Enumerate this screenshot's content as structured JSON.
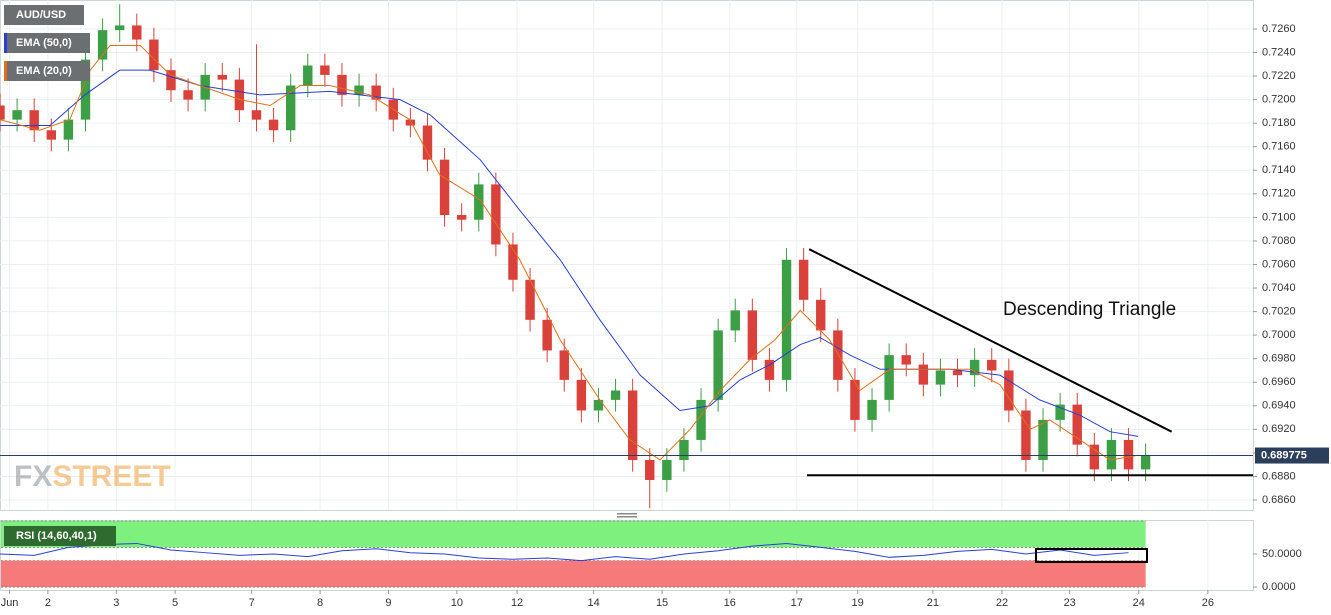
{
  "chart_data": [
    {
      "type": "candlestick",
      "title": "AUD/USD",
      "annotation": "Descending Triangle",
      "watermark": [
        "FX",
        "STREET"
      ],
      "up_color": "#3c9e45",
      "down_color": "#d9413a",
      "xlim": [
        0.3,
        18.62
      ],
      "ylim": [
        0.68515,
        0.72846
      ],
      "grid": true,
      "xticks": [
        {
          "value": 0.44,
          "label": "Jun"
        },
        {
          "value": 1,
          "label": "2"
        },
        {
          "value": 2,
          "label": "3"
        },
        {
          "value": 2.86,
          "label": "5"
        },
        {
          "value": 3.98,
          "label": "7"
        },
        {
          "value": 4.98,
          "label": "8"
        },
        {
          "value": 5.98,
          "label": "9"
        },
        {
          "value": 6.98,
          "label": "10"
        },
        {
          "value": 7.86,
          "label": "12"
        },
        {
          "value": 8.98,
          "label": "14"
        },
        {
          "value": 9.98,
          "label": "15"
        },
        {
          "value": 10.97,
          "label": "16"
        },
        {
          "value": 11.95,
          "label": "17"
        },
        {
          "value": 12.84,
          "label": "19"
        },
        {
          "value": 13.94,
          "label": "21"
        },
        {
          "value": 14.95,
          "label": "22"
        },
        {
          "value": 15.94,
          "label": "23"
        },
        {
          "value": 16.95,
          "label": "24"
        },
        {
          "value": 17.96,
          "label": "26"
        }
      ],
      "yticks": [
        {
          "value": 0.686,
          "label": "0.6860"
        },
        {
          "value": 0.688,
          "label": "0.6880"
        },
        {
          "value": 0.69,
          "label": "0.6900"
        },
        {
          "value": 0.692,
          "label": "0.6920"
        },
        {
          "value": 0.694,
          "label": "0.6940"
        },
        {
          "value": 0.696,
          "label": "0.6960"
        },
        {
          "value": 0.698,
          "label": "0.6980"
        },
        {
          "value": 0.7,
          "label": "0.7000"
        },
        {
          "value": 0.702,
          "label": "0.7020"
        },
        {
          "value": 0.704,
          "label": "0.7040"
        },
        {
          "value": 0.706,
          "label": "0.7060"
        },
        {
          "value": 0.708,
          "label": "0.7080"
        },
        {
          "value": 0.71,
          "label": "0.7100"
        },
        {
          "value": 0.712,
          "label": "0.7120"
        },
        {
          "value": 0.714,
          "label": "0.7140"
        },
        {
          "value": 0.716,
          "label": "0.7160"
        },
        {
          "value": 0.718,
          "label": "0.7180"
        },
        {
          "value": 0.72,
          "label": "0.7200"
        },
        {
          "value": 0.722,
          "label": "0.7220"
        },
        {
          "value": 0.724,
          "label": "0.7240"
        },
        {
          "value": 0.726,
          "label": "0.7260"
        }
      ],
      "last_price": 0.689775,
      "x": [
        0.3,
        0.55,
        0.8,
        1.05,
        1.3,
        1.55,
        1.8,
        2.05,
        2.3,
        2.55,
        2.8,
        3.05,
        3.3,
        3.55,
        3.8,
        4.05,
        4.3,
        4.55,
        4.8,
        5.05,
        5.3,
        5.55,
        5.8,
        6.05,
        6.3,
        6.55,
        6.8,
        7.05,
        7.3,
        7.55,
        7.8,
        8.05,
        8.3,
        8.55,
        8.8,
        9.05,
        9.3,
        9.55,
        9.8,
        10.05,
        10.3,
        10.55,
        10.8,
        11.05,
        11.3,
        11.55,
        11.8,
        12.05,
        12.3,
        12.55,
        12.8,
        13.05,
        13.3,
        13.55,
        13.8,
        14.05,
        14.3,
        14.55,
        14.8,
        15.05,
        15.3,
        15.55,
        15.8,
        16.05,
        16.3,
        16.55,
        16.8,
        17.05
      ],
      "open": [
        0.7195,
        0.7183,
        0.7191,
        0.7174,
        0.7166,
        0.7183,
        0.7234,
        0.7259,
        0.7263,
        0.7251,
        0.7225,
        0.7208,
        0.72,
        0.7221,
        0.7217,
        0.7191,
        0.7183,
        0.7174,
        0.7212,
        0.7229,
        0.7221,
        0.7204,
        0.7212,
        0.72,
        0.7183,
        0.7178,
        0.7149,
        0.7102,
        0.7098,
        0.7128,
        0.7077,
        0.7047,
        0.7013,
        0.6987,
        0.6962,
        0.6936,
        0.6945,
        0.6953,
        0.6894,
        0.6877,
        0.6894,
        0.6911,
        0.6945,
        0.7004,
        0.7021,
        0.6979,
        0.6962,
        0.7064,
        0.703,
        0.7004,
        0.6962,
        0.6928,
        0.6945,
        0.6983,
        0.6975,
        0.6958,
        0.697,
        0.6966,
        0.6979,
        0.697,
        0.6936,
        0.6894,
        0.6928,
        0.6941,
        0.6907,
        0.6886,
        0.6911,
        0.6886
      ],
      "high": [
        0.7205,
        0.7201,
        0.7201,
        0.7184,
        0.7193,
        0.7244,
        0.7269,
        0.7281,
        0.7273,
        0.7261,
        0.7235,
        0.7218,
        0.7231,
        0.7231,
        0.7227,
        0.7247,
        0.7193,
        0.7222,
        0.7239,
        0.7239,
        0.7231,
        0.7222,
        0.7222,
        0.721,
        0.7193,
        0.7188,
        0.7159,
        0.7112,
        0.7138,
        0.7138,
        0.7087,
        0.7057,
        0.7023,
        0.6997,
        0.6972,
        0.6955,
        0.6963,
        0.6963,
        0.6904,
        0.6904,
        0.6921,
        0.6955,
        0.7014,
        0.7031,
        0.7031,
        0.6989,
        0.7074,
        0.7074,
        0.704,
        0.7014,
        0.6972,
        0.6955,
        0.6993,
        0.6993,
        0.6985,
        0.698,
        0.698,
        0.6989,
        0.6989,
        0.698,
        0.6946,
        0.6938,
        0.6951,
        0.6951,
        0.6917,
        0.6921,
        0.6921,
        0.6908
      ],
      "low": [
        0.7173,
        0.7173,
        0.7164,
        0.7156,
        0.7156,
        0.7173,
        0.7224,
        0.7249,
        0.7241,
        0.7215,
        0.7198,
        0.719,
        0.719,
        0.7207,
        0.7181,
        0.7173,
        0.7164,
        0.7164,
        0.7202,
        0.7211,
        0.7194,
        0.7194,
        0.719,
        0.7173,
        0.7168,
        0.7139,
        0.7092,
        0.7088,
        0.7088,
        0.7067,
        0.7037,
        0.7003,
        0.6977,
        0.6952,
        0.6926,
        0.6926,
        0.6935,
        0.6884,
        0.6853,
        0.6867,
        0.6884,
        0.6901,
        0.6935,
        0.6994,
        0.6969,
        0.6952,
        0.6952,
        0.702,
        0.6994,
        0.6952,
        0.6918,
        0.6918,
        0.6935,
        0.6965,
        0.6948,
        0.6948,
        0.6956,
        0.6956,
        0.696,
        0.6926,
        0.6884,
        0.6884,
        0.6918,
        0.6897,
        0.6876,
        0.6876,
        0.6876,
        0.6876
      ],
      "close": [
        0.7183,
        0.7191,
        0.7174,
        0.7166,
        0.7183,
        0.7234,
        0.7259,
        0.7263,
        0.7251,
        0.7225,
        0.7208,
        0.72,
        0.7221,
        0.7217,
        0.7191,
        0.7183,
        0.7174,
        0.7212,
        0.7229,
        0.7221,
        0.7204,
        0.7212,
        0.72,
        0.7183,
        0.7178,
        0.7149,
        0.7102,
        0.7098,
        0.7128,
        0.7077,
        0.7047,
        0.7013,
        0.6987,
        0.6962,
        0.6936,
        0.6945,
        0.6953,
        0.6894,
        0.6877,
        0.6894,
        0.6911,
        0.6945,
        0.7004,
        0.7021,
        0.6979,
        0.6962,
        0.7064,
        0.703,
        0.7004,
        0.6962,
        0.6928,
        0.6945,
        0.6983,
        0.6975,
        0.6958,
        0.697,
        0.6966,
        0.6979,
        0.697,
        0.6936,
        0.6894,
        0.6928,
        0.6941,
        0.6907,
        0.6886,
        0.6911,
        0.6886,
        0.6898
      ],
      "series": [
        {
          "name": "EMA (50,0)",
          "color": "#2a3fd6",
          "x": [
            0.3,
            1.03,
            1.54,
            2.05,
            2.49,
            3.22,
            4.1,
            5.12,
            6.15,
            6.59,
            7.32,
            7.9,
            8.49,
            9.07,
            9.66,
            10.24,
            10.68,
            11.12,
            11.56,
            12.0,
            12.29,
            12.73,
            13.17,
            14.19,
            14.92,
            15.5,
            16.09,
            16.53,
            16.94
          ],
          "values": [
            0.7178,
            0.7178,
            0.7204,
            0.7225,
            0.7225,
            0.7212,
            0.7204,
            0.7207,
            0.72,
            0.7187,
            0.7149,
            0.7106,
            0.7064,
            0.7013,
            0.6966,
            0.6936,
            0.694,
            0.6962,
            0.6975,
            0.6992,
            0.6998,
            0.6983,
            0.6971,
            0.6971,
            0.6966,
            0.6945,
            0.6932,
            0.6918,
            0.6914
          ]
        },
        {
          "name": "EMA (20,0)",
          "color": "#e0701e",
          "x": [
            0.3,
            0.88,
            1.32,
            1.62,
            1.91,
            2.35,
            2.79,
            3.22,
            3.81,
            4.25,
            4.69,
            5.12,
            5.71,
            6.29,
            6.73,
            7.32,
            7.9,
            8.49,
            9.07,
            9.51,
            9.95,
            10.39,
            10.83,
            11.26,
            11.63,
            12.0,
            12.43,
            12.87,
            13.31,
            13.9,
            14.48,
            14.92,
            15.36,
            15.65,
            16.09,
            16.53,
            16.94
          ],
          "values": [
            0.7183,
            0.7174,
            0.7183,
            0.7225,
            0.7246,
            0.7246,
            0.7221,
            0.7212,
            0.72,
            0.7195,
            0.7212,
            0.7212,
            0.7204,
            0.7183,
            0.7136,
            0.7115,
            0.7064,
            0.6996,
            0.6945,
            0.6911,
            0.6894,
            0.692,
            0.6953,
            0.6979,
            0.6996,
            0.7021,
            0.6996,
            0.6953,
            0.6971,
            0.6971,
            0.6971,
            0.6958,
            0.692,
            0.6928,
            0.6911,
            0.6894,
            0.6898
          ]
        }
      ],
      "trendlines": [
        {
          "x": [
            12.13,
            17.43
          ],
          "y": [
            0.7073,
            0.6918
          ]
        },
        {
          "x": [
            12.1,
            18.62
          ],
          "y": [
            0.6881,
            0.6881
          ]
        }
      ]
    },
    {
      "type": "line",
      "title": "RSI (14,60,40,1)",
      "color": "#2a3fd6",
      "ylim": [
        -4.5,
        101.5
      ],
      "yticks": [
        {
          "value": 50,
          "label": "50.0000"
        },
        {
          "value": 0,
          "label": "0.0000"
        }
      ],
      "zones": [
        {
          "from": 60,
          "to": 100,
          "color": "#7df07d"
        },
        {
          "from": 0,
          "to": 40,
          "color": "#f77a7a"
        }
      ],
      "x": [
        0.3,
        0.8,
        1.3,
        1.8,
        2.3,
        2.8,
        3.3,
        3.8,
        4.3,
        4.8,
        5.3,
        5.8,
        6.3,
        6.8,
        7.3,
        7.8,
        8.3,
        8.8,
        9.3,
        9.8,
        10.3,
        10.8,
        11.3,
        11.8,
        12.3,
        12.8,
        13.3,
        13.8,
        14.3,
        14.8,
        15.3,
        15.8,
        16.3,
        16.8
      ],
      "values": [
        50,
        48,
        60,
        64,
        66,
        56,
        52,
        48,
        50,
        46,
        55,
        58,
        52,
        50,
        44,
        42,
        44,
        40,
        46,
        42,
        50,
        55,
        62,
        66,
        60,
        54,
        45,
        48,
        54,
        57,
        50,
        56,
        48,
        52
      ]
    }
  ]
}
